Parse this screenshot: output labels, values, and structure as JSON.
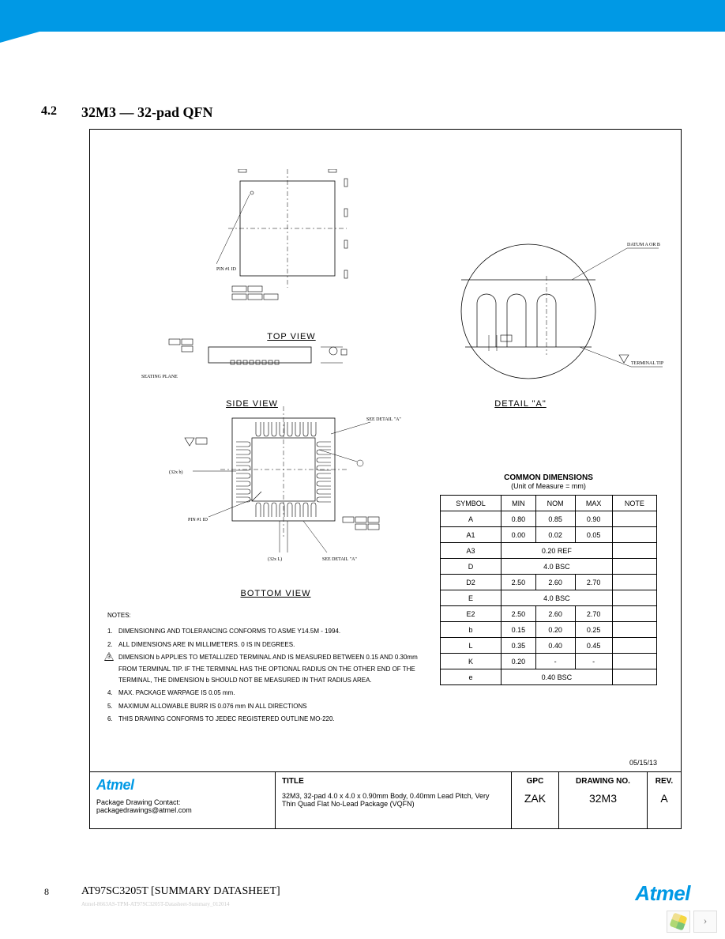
{
  "section": {
    "number": "4.2",
    "title": "32M3 — 32-pad QFN"
  },
  "views": {
    "top_label": "TOP VIEW",
    "side_label": "SIDE VIEW",
    "bottom_label": "BOTTOM VIEW",
    "detail_label": "DETAIL \"A\""
  },
  "detail_annotations": {
    "datum": "DATUM A OR B",
    "terminal": "TERMINAL TIP"
  },
  "dim_header": "COMMON DIMENSIONS",
  "dim_sub": "(Unit of Measure = mm)",
  "dim_columns": [
    "SYMBOL",
    "MIN",
    "NOM",
    "MAX",
    "NOTE"
  ],
  "dim_rows": [
    {
      "sym": "A",
      "min": "0.80",
      "nom": "0.85",
      "max": "0.90",
      "note": ""
    },
    {
      "sym": "A1",
      "min": "0.00",
      "nom": "0.02",
      "max": "0.05",
      "note": ""
    },
    {
      "sym": "A3",
      "span": "0.20 REF",
      "note": ""
    },
    {
      "sym": "D",
      "span": "4.0 BSC",
      "note": ""
    },
    {
      "sym": "D2",
      "min": "2.50",
      "nom": "2.60",
      "max": "2.70",
      "note": ""
    },
    {
      "sym": "E",
      "span": "4.0 BSC",
      "note": ""
    },
    {
      "sym": "E2",
      "min": "2.50",
      "nom": "2.60",
      "max": "2.70",
      "note": ""
    },
    {
      "sym": "b",
      "min": "0.15",
      "nom": "0.20",
      "max": "0.25",
      "note": ""
    },
    {
      "sym": "L",
      "min": "0.35",
      "nom": "0.40",
      "max": "0.45",
      "note": ""
    },
    {
      "sym": "K",
      "min": "0.20",
      "nom": "-",
      "max": "-",
      "note": ""
    },
    {
      "sym": "e",
      "span": "0.40 BSC",
      "note": ""
    }
  ],
  "notes_header": "NOTES:",
  "notes": [
    {
      "n": "1",
      "text": "DIMENSIONING AND TOLERANCING CONFORMS TO ASME Y14.5M - 1994."
    },
    {
      "n": "2",
      "text": "ALL DIMENSIONS ARE IN MILLIMETERS. 0 IS IN DEGREES."
    },
    {
      "n": "3",
      "tri": true,
      "text": "DIMENSION b APPLIES TO METALLIZED TERMINAL AND IS MEASURED BETWEEN 0.15 AND 0.30mm FROM TERMINAL TIP. IF THE TERMINAL HAS THE OPTIONAL RADIUS ON THE OTHER END OF THE TERMINAL, THE DIMENSION b SHOULD NOT BE MEASURED IN THAT RADIUS AREA."
    },
    {
      "n": "4",
      "text": "MAX. PACKAGE WARPAGE IS 0.05 mm."
    },
    {
      "n": "5",
      "text": "MAXIMUM ALLOWABLE BURR IS 0.076 mm IN ALL DIRECTIONS"
    },
    {
      "n": "6",
      "text": "THIS DRAWING CONFORMS TO JEDEC REGISTERED OUTLINE MO-220."
    }
  ],
  "date_stamp": "05/15/13",
  "titleblock": {
    "contact_label": "Package Drawing Contact:",
    "contact_email": "packagedrawings@atmel.com",
    "title_key": "TITLE",
    "title_text": "32M3, 32-pad 4.0 x 4.0 x 0.90mm Body, 0.40mm Lead Pitch, Very Thin Quad Flat No-Lead Package (VQFN)",
    "gpc_key": "GPC",
    "gpc_val": "ZAK",
    "drawing_key": "DRAWING NO.",
    "drawing_val": "32M3",
    "rev_key": "REV.",
    "rev_val": "A"
  },
  "footer": {
    "page": "8",
    "doc_title": "AT97SC3205T [SUMMARY DATASHEET]",
    "docline": "Atmel-8663AS-TPM-AT97SC3205T-Datasheet-Summary_012014"
  },
  "colors": {
    "brand_blue": "#0099e5",
    "text": "#000000",
    "border": "#000000",
    "footer_gray": "#cccccc"
  }
}
